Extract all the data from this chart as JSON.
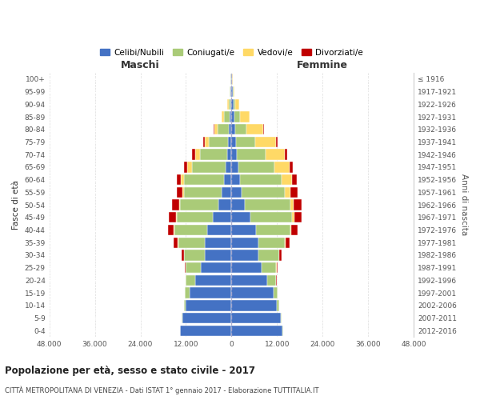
{
  "age_groups": [
    "0-4",
    "5-9",
    "10-14",
    "15-19",
    "20-24",
    "25-29",
    "30-34",
    "35-39",
    "40-44",
    "45-49",
    "50-54",
    "55-59",
    "60-64",
    "65-69",
    "70-74",
    "75-79",
    "80-84",
    "85-89",
    "90-94",
    "95-99",
    "100+"
  ],
  "birth_years": [
    "2012-2016",
    "2007-2011",
    "2002-2006",
    "1997-2001",
    "1992-1996",
    "1987-1991",
    "1982-1986",
    "1977-1981",
    "1972-1976",
    "1967-1971",
    "1962-1966",
    "1957-1961",
    "1952-1956",
    "1947-1951",
    "1942-1946",
    "1937-1941",
    "1932-1936",
    "1927-1931",
    "1922-1926",
    "1917-1921",
    "≤ 1916"
  ],
  "male": {
    "celibi": [
      13500,
      13000,
      12000,
      11000,
      9500,
      8000,
      7000,
      7000,
      6500,
      5000,
      3500,
      2500,
      2000,
      1500,
      1200,
      900,
      600,
      500,
      300,
      200,
      100
    ],
    "coniugati": [
      100,
      200,
      500,
      1200,
      2500,
      4000,
      5500,
      7000,
      8500,
      9500,
      10000,
      10000,
      10500,
      9000,
      7000,
      5000,
      3000,
      1500,
      500,
      200,
      100
    ],
    "vedovi": [
      5,
      5,
      5,
      10,
      20,
      30,
      50,
      100,
      150,
      200,
      300,
      500,
      800,
      1200,
      1400,
      1200,
      1000,
      600,
      300,
      100,
      50
    ],
    "divorziati": [
      10,
      15,
      30,
      80,
      150,
      300,
      600,
      1200,
      1600,
      1800,
      1800,
      1500,
      1100,
      900,
      700,
      400,
      200,
      100,
      50,
      20,
      10
    ]
  },
  "female": {
    "nubili": [
      13500,
      13000,
      12000,
      11000,
      9500,
      8000,
      7000,
      7000,
      6500,
      5000,
      3500,
      2600,
      2200,
      1800,
      1500,
      1200,
      900,
      700,
      500,
      300,
      100
    ],
    "coniugate": [
      100,
      200,
      500,
      1100,
      2300,
      3800,
      5500,
      7000,
      9000,
      11000,
      12000,
      11500,
      11000,
      9500,
      7500,
      5000,
      3000,
      1500,
      500,
      200,
      100
    ],
    "vedove": [
      5,
      5,
      10,
      15,
      30,
      60,
      100,
      200,
      300,
      500,
      800,
      1500,
      2800,
      4000,
      5000,
      5500,
      4500,
      2500,
      1000,
      300,
      100
    ],
    "divorziate": [
      10,
      15,
      30,
      80,
      150,
      300,
      600,
      1100,
      1600,
      2000,
      2200,
      1800,
      1200,
      900,
      700,
      400,
      200,
      100,
      50,
      20,
      10
    ]
  },
  "colors": {
    "celibi": "#4472C4",
    "coniugati": "#AACB78",
    "vedovi": "#FFD966",
    "divorziati": "#C00000"
  },
  "xlim": 48000,
  "title": "Popolazione per età, sesso e stato civile - 2017",
  "subtitle": "CITTÀ METROPOLITANA DI VENEZIA - Dati ISTAT 1° gennaio 2017 - Elaborazione TUTTITALIA.IT",
  "ylabel_left": "Fasce di età",
  "ylabel_right": "Anni di nascita",
  "label_maschi": "Maschi",
  "label_femmine": "Femmine",
  "legend_labels": [
    "Celibi/Nubili",
    "Coniugati/e",
    "Vedovi/e",
    "Divorziati/e"
  ],
  "background": "#ffffff",
  "grid_color": "#cccccc",
  "bar_edge_color": "#ffffff"
}
